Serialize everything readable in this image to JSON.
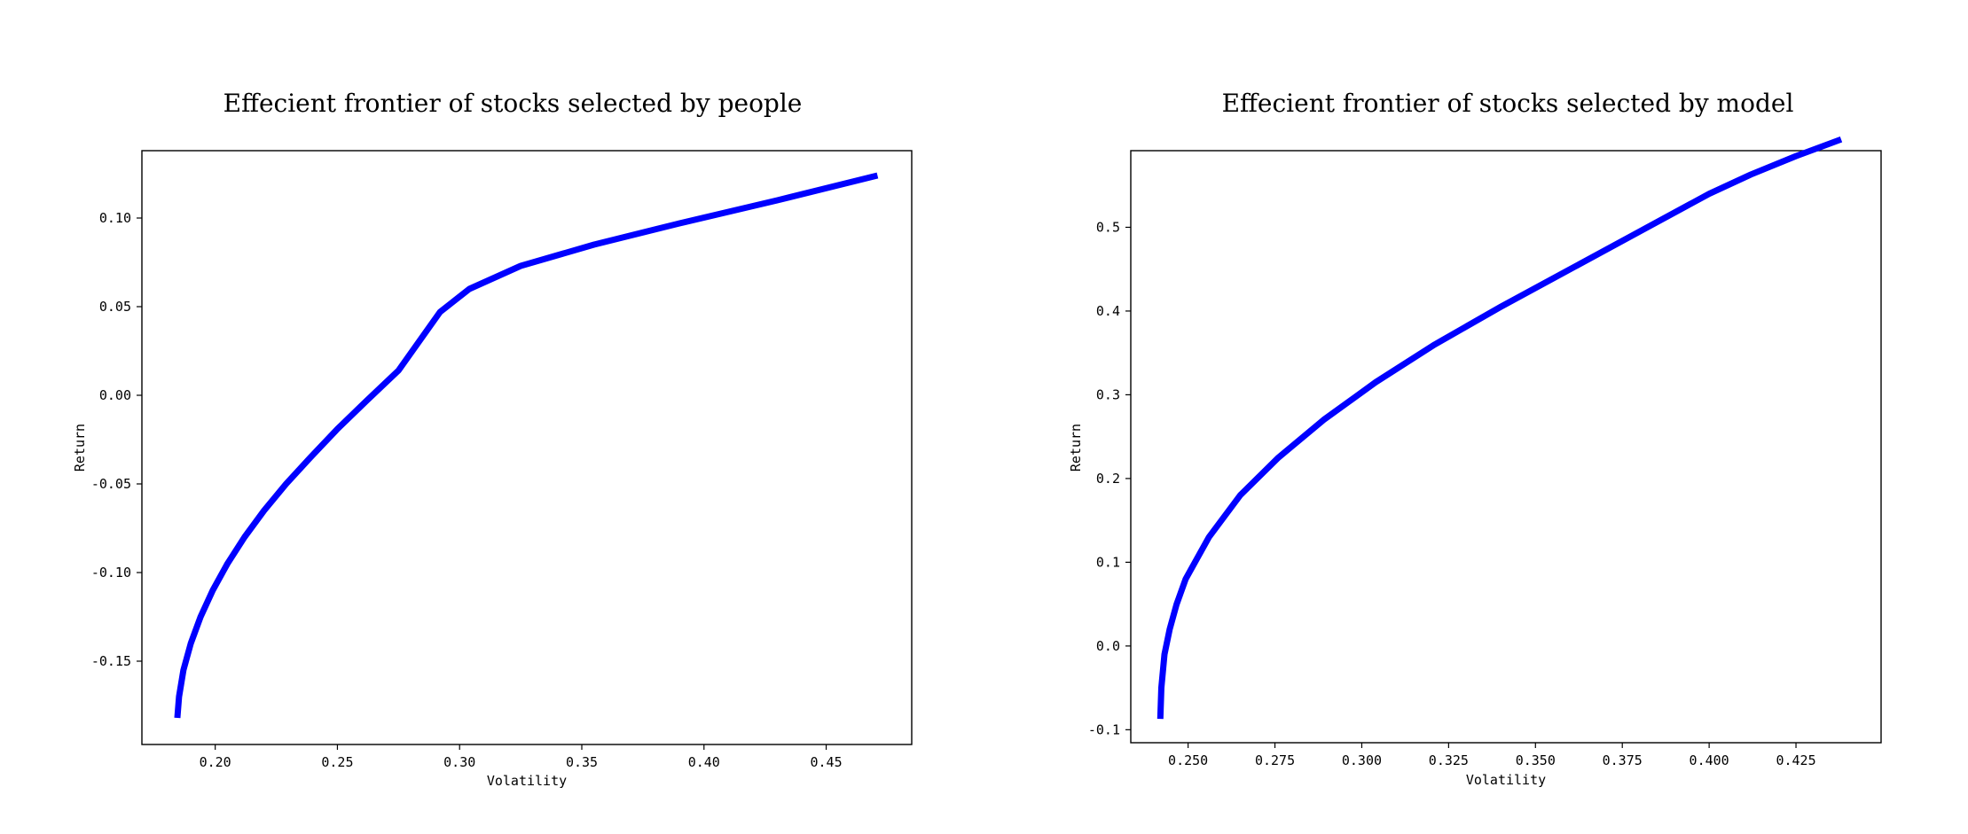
{
  "chart_data": [
    {
      "type": "line",
      "title": "Effecient frontier of stocks selected by people",
      "xlabel": "Volatility",
      "ylabel": "Return",
      "xlim": [
        0.17,
        0.485
      ],
      "ylim": [
        -0.197,
        0.138
      ],
      "xticks": [
        0.2,
        0.25,
        0.3,
        0.35,
        0.4,
        0.45
      ],
      "xtick_labels": [
        "0.20",
        "0.25",
        "0.30",
        "0.35",
        "0.40",
        "0.45"
      ],
      "yticks": [
        0.1,
        0.05,
        0.0,
        -0.05,
        -0.1,
        -0.15
      ],
      "ytick_labels": [
        "0.10",
        "0.05",
        "0.00",
        "-0.05",
        "-0.10",
        "-0.15"
      ],
      "grid": false,
      "color": "#0000ff",
      "series": [
        {
          "x": [
            0.1845,
            0.1852,
            0.187,
            0.19,
            0.194,
            0.199,
            0.205,
            0.212,
            0.22,
            0.229,
            0.239,
            0.25,
            0.262,
            0.275,
            0.292,
            0.304,
            0.325,
            0.355,
            0.39,
            0.43,
            0.471
          ],
          "y": [
            -0.182,
            -0.17,
            -0.155,
            -0.14,
            -0.125,
            -0.11,
            -0.095,
            -0.08,
            -0.065,
            -0.05,
            -0.035,
            -0.019,
            -0.003,
            0.014,
            0.047,
            0.06,
            0.073,
            0.085,
            0.097,
            0.11,
            0.124
          ]
        }
      ]
    },
    {
      "type": "line",
      "title": "Effecient frontier of stocks selected by model",
      "xlabel": "Volatility",
      "ylabel": "Return",
      "xlim": [
        0.2335,
        0.4495
      ],
      "ylim": [
        -0.1155,
        0.5915
      ],
      "xticks": [
        0.25,
        0.275,
        0.3,
        0.325,
        0.35,
        0.375,
        0.4,
        0.425
      ],
      "xtick_labels": [
        "0.250",
        "0.275",
        "0.300",
        "0.325",
        "0.350",
        "0.375",
        "0.400",
        "0.425"
      ],
      "yticks": [
        0.5,
        0.4,
        0.3,
        0.2,
        0.1,
        0.0,
        -0.1
      ],
      "ytick_labels": [
        "0.5",
        "0.4",
        "0.3",
        "0.2",
        "0.1",
        "0.0",
        "-0.1"
      ],
      "grid": false,
      "color": "#0000ff",
      "series": [
        {
          "x": [
            0.242,
            0.2423,
            0.2432,
            0.2447,
            0.2467,
            0.2493,
            0.256,
            0.265,
            0.276,
            0.289,
            0.304,
            0.321,
            0.34,
            0.36,
            0.38,
            0.4,
            0.412,
            0.425,
            0.438
          ],
          "y": [
            -0.087,
            -0.05,
            -0.01,
            0.02,
            0.05,
            0.08,
            0.13,
            0.18,
            0.225,
            0.27,
            0.315,
            0.36,
            0.405,
            0.45,
            0.495,
            0.54,
            0.563,
            0.585,
            0.605
          ]
        }
      ]
    }
  ]
}
